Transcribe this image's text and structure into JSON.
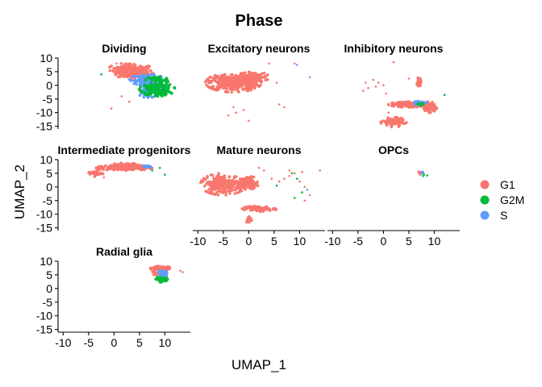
{
  "chart_data": {
    "type": "scatter",
    "title": "Phase",
    "xlabel": "UMAP_1",
    "ylabel": "UMAP_2",
    "xlim": [
      -11,
      15
    ],
    "ylim": [
      -16,
      10
    ],
    "x_ticks": [
      -10,
      -5,
      0,
      5,
      10
    ],
    "y_ticks": [
      10,
      5,
      0,
      -5,
      -10,
      -15
    ],
    "grid": false,
    "legend_position": "right",
    "legend": [
      {
        "name": "G1",
        "color": "#F8766D"
      },
      {
        "name": "G2M",
        "color": "#00BA38"
      },
      {
        "name": "S",
        "color": "#619CFF"
      }
    ],
    "facets": [
      {
        "label": "Dividing",
        "blobs": [
          {
            "phase": "G1",
            "cx": 4,
            "cy": 5,
            "rx": 4,
            "ry": 3,
            "n": 170
          },
          {
            "phase": "G1",
            "cx": 1.5,
            "cy": 6,
            "rx": 2.5,
            "ry": 2,
            "n": 50
          },
          {
            "phase": "S",
            "cx": 6.5,
            "cy": 2,
            "rx": 3.5,
            "ry": 2,
            "n": 110
          },
          {
            "phase": "S",
            "cx": 8,
            "cy": 0,
            "rx": 3,
            "ry": 2,
            "n": 60
          },
          {
            "phase": "S",
            "cx": 6.5,
            "cy": -3,
            "rx": 1.5,
            "ry": 2,
            "n": 40
          },
          {
            "phase": "G2M",
            "cx": 8.5,
            "cy": -1.5,
            "rx": 3.5,
            "ry": 2.5,
            "n": 150
          },
          {
            "phase": "G2M",
            "cx": 8.5,
            "cy": 2,
            "rx": 2.5,
            "ry": 1.5,
            "n": 50
          }
        ],
        "points": [
          {
            "x": -2.5,
            "y": 4,
            "phase": "G2M"
          },
          {
            "x": -0.5,
            "y": -8.5,
            "phase": "G1"
          },
          {
            "x": 1.5,
            "y": -4,
            "phase": "G1"
          },
          {
            "x": 3,
            "y": -6,
            "phase": "G1"
          },
          {
            "x": 0.5,
            "y": 8,
            "phase": "G1"
          },
          {
            "x": 4,
            "y": 8,
            "phase": "G1"
          }
        ]
      },
      {
        "label": "Excitatory neurons",
        "blobs": [
          {
            "phase": "G1",
            "cx": -3,
            "cy": 1,
            "rx": 5.5,
            "ry": 3.5,
            "n": 330
          },
          {
            "phase": "G1",
            "cx": 1,
            "cy": 3,
            "rx": 3,
            "ry": 2,
            "n": 80
          }
        ],
        "points": [
          {
            "x": 4,
            "y": 8,
            "phase": "G1"
          },
          {
            "x": 9,
            "y": 8,
            "phase": "G1"
          },
          {
            "x": 9.5,
            "y": 7.5,
            "phase": "S"
          },
          {
            "x": 12,
            "y": 3,
            "phase": "S"
          },
          {
            "x": 5.5,
            "y": 1,
            "phase": "G1"
          },
          {
            "x": -3,
            "y": -8,
            "phase": "G1"
          },
          {
            "x": -1,
            "y": -9,
            "phase": "G1"
          },
          {
            "x": 0,
            "y": -13,
            "phase": "G1"
          },
          {
            "x": -2.5,
            "y": -10,
            "phase": "G1"
          },
          {
            "x": 6,
            "y": -7,
            "phase": "G1"
          },
          {
            "x": 7,
            "y": -8,
            "phase": "G1"
          },
          {
            "x": -4,
            "y": -11,
            "phase": "G1"
          }
        ]
      },
      {
        "label": "Inhibitory neurons",
        "blobs": [
          {
            "phase": "G1",
            "cx": 5.5,
            "cy": -7,
            "rx": 4.5,
            "ry": 1,
            "n": 160
          },
          {
            "phase": "G1",
            "cx": 9,
            "cy": -8,
            "rx": 1.5,
            "ry": 2,
            "n": 60
          },
          {
            "phase": "G1",
            "cx": 2,
            "cy": -13.5,
            "rx": 2.5,
            "ry": 1.8,
            "n": 90
          },
          {
            "phase": "G1",
            "cx": 7,
            "cy": 1,
            "rx": 0.4,
            "ry": 2,
            "n": 25
          },
          {
            "phase": "S",
            "cx": 7,
            "cy": -6.5,
            "rx": 1.5,
            "ry": 0.7,
            "n": 25
          },
          {
            "phase": "G2M",
            "cx": 7.5,
            "cy": -6.8,
            "rx": 1.2,
            "ry": 0.6,
            "n": 8
          }
        ],
        "points": [
          {
            "x": 2,
            "y": 8.5,
            "phase": "G1"
          },
          {
            "x": -2,
            "y": 2,
            "phase": "G1"
          },
          {
            "x": -1,
            "y": 1,
            "phase": "G1"
          },
          {
            "x": -3,
            "y": -1,
            "phase": "G1"
          },
          {
            "x": 0,
            "y": 0,
            "phase": "G1"
          },
          {
            "x": -4,
            "y": -2,
            "phase": "G1"
          },
          {
            "x": 0.5,
            "y": -3,
            "phase": "G1"
          },
          {
            "x": -3.5,
            "y": 1,
            "phase": "G1"
          },
          {
            "x": -1.5,
            "y": -0.5,
            "phase": "G1"
          },
          {
            "x": 12,
            "y": -3.5,
            "phase": "G2M"
          },
          {
            "x": 5,
            "y": 2.5,
            "phase": "G1"
          },
          {
            "x": 1,
            "y": -10,
            "phase": "G1"
          }
        ]
      },
      {
        "label": "Intermediate progenitors",
        "blobs": [
          {
            "phase": "G1",
            "cx": 2,
            "cy": 7,
            "rx": 5.5,
            "ry": 1,
            "n": 200
          },
          {
            "phase": "G1",
            "cx": 2.5,
            "cy": 8,
            "rx": 3,
            "ry": 0.8,
            "n": 60
          },
          {
            "phase": "G1",
            "cx": -3.5,
            "cy": 5,
            "rx": 1.5,
            "ry": 1.2,
            "n": 25
          },
          {
            "phase": "S",
            "cx": 6.5,
            "cy": 7.5,
            "rx": 1.2,
            "ry": 0.5,
            "n": 15
          }
        ],
        "points": [
          {
            "x": 9,
            "y": 7,
            "phase": "G2M"
          },
          {
            "x": 10,
            "y": 4.5,
            "phase": "G2M"
          },
          {
            "x": 7.5,
            "y": 6,
            "phase": "G2M"
          },
          {
            "x": -2,
            "y": 3.5,
            "phase": "G1"
          }
        ]
      },
      {
        "label": "Mature neurons",
        "blobs": [
          {
            "phase": "G1",
            "cx": -5,
            "cy": 1,
            "rx": 4.5,
            "ry": 4,
            "n": 260
          },
          {
            "phase": "G1",
            "cx": 0,
            "cy": 1.5,
            "rx": 2,
            "ry": 2.5,
            "n": 90
          },
          {
            "phase": "G1",
            "cx": 2,
            "cy": -8,
            "rx": 3.5,
            "ry": 1,
            "n": 80
          },
          {
            "phase": "G1",
            "cx": 0,
            "cy": -12,
            "rx": 0.6,
            "ry": 1.5,
            "n": 15
          }
        ],
        "points": [
          {
            "x": 2,
            "y": 7,
            "phase": "G1"
          },
          {
            "x": 3,
            "y": 6,
            "phase": "G1"
          },
          {
            "x": 6,
            "y": 2,
            "phase": "G1"
          },
          {
            "x": 7,
            "y": 3,
            "phase": "G1"
          },
          {
            "x": 8,
            "y": 4,
            "phase": "G1"
          },
          {
            "x": 9,
            "y": 5,
            "phase": "G1"
          },
          {
            "x": 8,
            "y": 6,
            "phase": "G1"
          },
          {
            "x": 8.5,
            "y": 5,
            "phase": "G2M"
          },
          {
            "x": 9.5,
            "y": 3,
            "phase": "G2M"
          },
          {
            "x": 10,
            "y": 2,
            "phase": "G1"
          },
          {
            "x": 11,
            "y": 0,
            "phase": "G1"
          },
          {
            "x": 10.5,
            "y": -2,
            "phase": "G2M"
          },
          {
            "x": 11.5,
            "y": -1,
            "phase": "S"
          },
          {
            "x": 12,
            "y": -3,
            "phase": "G1"
          },
          {
            "x": 11,
            "y": -5,
            "phase": "G1"
          },
          {
            "x": 9,
            "y": -4,
            "phase": "G2M"
          },
          {
            "x": 14,
            "y": 6,
            "phase": "G1"
          },
          {
            "x": 4.5,
            "y": 3,
            "phase": "G1"
          },
          {
            "x": 10.5,
            "y": 5.5,
            "phase": "G1"
          },
          {
            "x": 5.5,
            "y": 0.5,
            "phase": "G2M"
          }
        ]
      },
      {
        "label": "OPCs",
        "blobs": [
          {
            "phase": "G1",
            "cx": 7.2,
            "cy": 5,
            "rx": 0.4,
            "ry": 0.8,
            "n": 8
          },
          {
            "phase": "S",
            "cx": 7.6,
            "cy": 5.3,
            "rx": 0.3,
            "ry": 0.5,
            "n": 5
          }
        ],
        "points": [
          {
            "x": 8,
            "y": 4.5,
            "phase": "G2M"
          },
          {
            "x": 8.6,
            "y": 4.2,
            "phase": "G2M"
          },
          {
            "x": 7.8,
            "y": 4,
            "phase": "G2M"
          }
        ]
      },
      {
        "label": "Radial glia",
        "blobs": [
          {
            "phase": "G1",
            "cx": 9,
            "cy": 7.5,
            "rx": 2,
            "ry": 1,
            "n": 70
          },
          {
            "phase": "G2M",
            "cx": 9.5,
            "cy": 3.5,
            "rx": 1.3,
            "ry": 1.2,
            "n": 40
          },
          {
            "phase": "S",
            "cx": 9.5,
            "cy": 5.5,
            "rx": 1.2,
            "ry": 1,
            "n": 40
          },
          {
            "phase": "G1",
            "cx": 8,
            "cy": 6,
            "rx": 0.5,
            "ry": 2,
            "n": 15
          }
        ],
        "points": [
          {
            "x": 13,
            "y": 6.5,
            "phase": "G1"
          },
          {
            "x": 13.5,
            "y": 6,
            "phase": "G1"
          }
        ]
      }
    ]
  }
}
